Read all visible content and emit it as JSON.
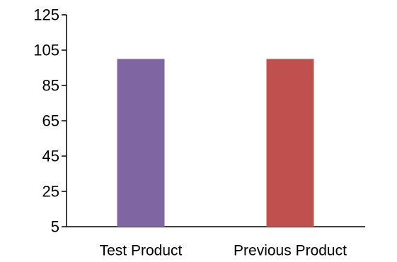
{
  "chart_data": {
    "type": "bar",
    "title": "",
    "xlabel": "",
    "ylabel": "",
    "categories": [
      "Test Product",
      "Previous Product"
    ],
    "values": [
      100,
      100
    ],
    "colors": [
      "#7F65A2",
      "#C0504D"
    ],
    "ylim": [
      5,
      125
    ],
    "yticks": [
      "5",
      "25",
      "45",
      "65",
      "85",
      "105",
      "125"
    ],
    "grid": false,
    "legend": "none"
  }
}
